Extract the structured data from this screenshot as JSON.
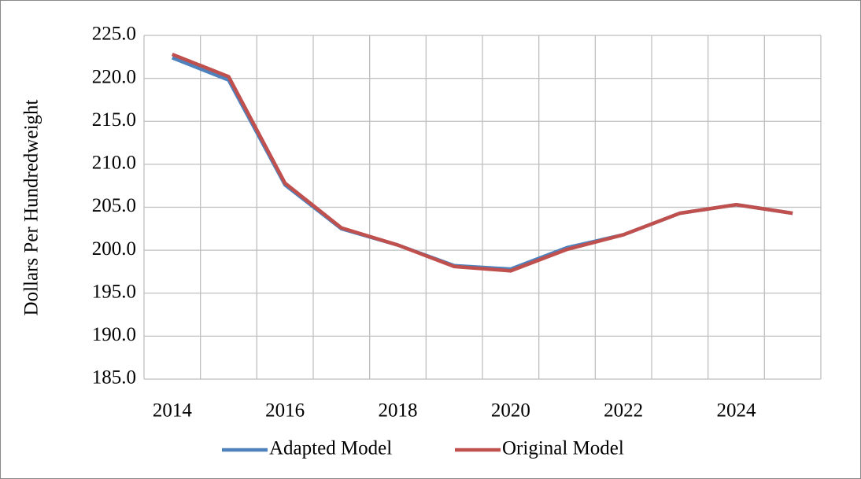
{
  "chart_data": {
    "type": "line",
    "y_label": "Dollars Per Hundredweight",
    "categories": [
      "2014",
      null,
      "2016",
      null,
      "2018",
      null,
      "2020",
      null,
      "2022",
      null,
      "2024",
      null
    ],
    "series": [
      {
        "name": "Adapted Model",
        "color": "#4f81bd",
        "values": [
          222.4,
          219.8,
          207.6,
          202.5,
          200.6,
          198.2,
          197.8,
          200.3,
          201.8,
          204.3,
          205.3,
          204.3
        ]
      },
      {
        "name": "Original Model",
        "color": "#c0504d",
        "values": [
          222.8,
          220.2,
          207.8,
          202.6,
          200.6,
          198.1,
          197.6,
          200.1,
          201.8,
          204.3,
          205.3,
          204.3
        ]
      }
    ],
    "ylim": [
      185,
      225
    ],
    "yticks": [
      {
        "value": 185,
        "label": "185.0"
      },
      {
        "value": 190,
        "label": "190.0"
      },
      {
        "value": 195,
        "label": "195.0"
      },
      {
        "value": 200,
        "label": "200.0"
      },
      {
        "value": 205,
        "label": "205.0"
      },
      {
        "value": 210,
        "label": "210.0"
      },
      {
        "value": 215,
        "label": "215.0"
      },
      {
        "value": 220,
        "label": "220.0"
      },
      {
        "value": 225,
        "label": "225.0"
      }
    ],
    "grid": true,
    "legend": "bottom"
  }
}
